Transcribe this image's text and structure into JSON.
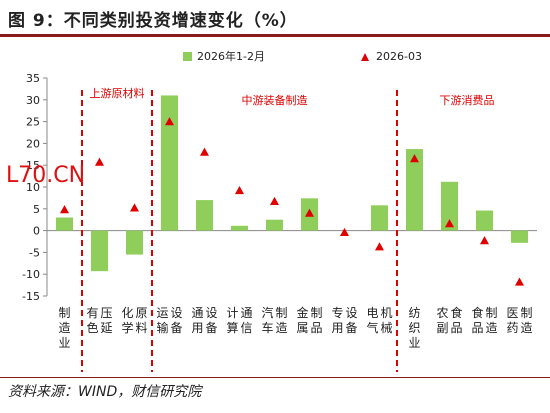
{
  "figure": {
    "title": "图 9：不同类别投资增速变化（%）",
    "source": "资料来源：WIND，财信研究院",
    "watermark": "L70.CN"
  },
  "colors": {
    "bar": "#8fce5a",
    "marker": "#e00000",
    "group_divider": "#e00000",
    "group_text": "#e00000"
  },
  "chart_data": {
    "type": "bar",
    "categories": [
      "制造业",
      "有色压延",
      "化学原料",
      "运输设备",
      "通用设备",
      "计算通信",
      "汽车制造",
      "金属制品",
      "专用设备",
      "电气机械",
      "纺织业",
      "农副食品",
      "食品制造",
      "医药制造"
    ],
    "series": [
      {
        "name": "2026年1-2月",
        "kind": "bar",
        "values": [
          3.0,
          -9.3,
          -5.5,
          31.0,
          7.0,
          1.1,
          2.5,
          7.4,
          0.0,
          5.8,
          18.7,
          11.2,
          4.6,
          -2.8
        ]
      },
      {
        "name": "2026-03",
        "kind": "marker",
        "values": [
          4.8,
          15.7,
          5.2,
          25.0,
          18.0,
          9.2,
          6.7,
          4.0,
          -0.4,
          -3.7,
          16.5,
          1.6,
          -2.3,
          -11.8
        ]
      }
    ],
    "groups": [
      {
        "label": "上游原材料",
        "start": 1,
        "end": 2
      },
      {
        "label": "中游装备制造",
        "start": 3,
        "end": 9
      },
      {
        "label": "下游消费品",
        "start": 10,
        "end": 13
      }
    ],
    "ylim": [
      -15,
      35
    ],
    "yticks": [
      -15,
      -10,
      -5,
      0,
      5,
      10,
      15,
      20,
      25,
      30,
      35
    ],
    "legend": "top-center",
    "grid": false
  }
}
